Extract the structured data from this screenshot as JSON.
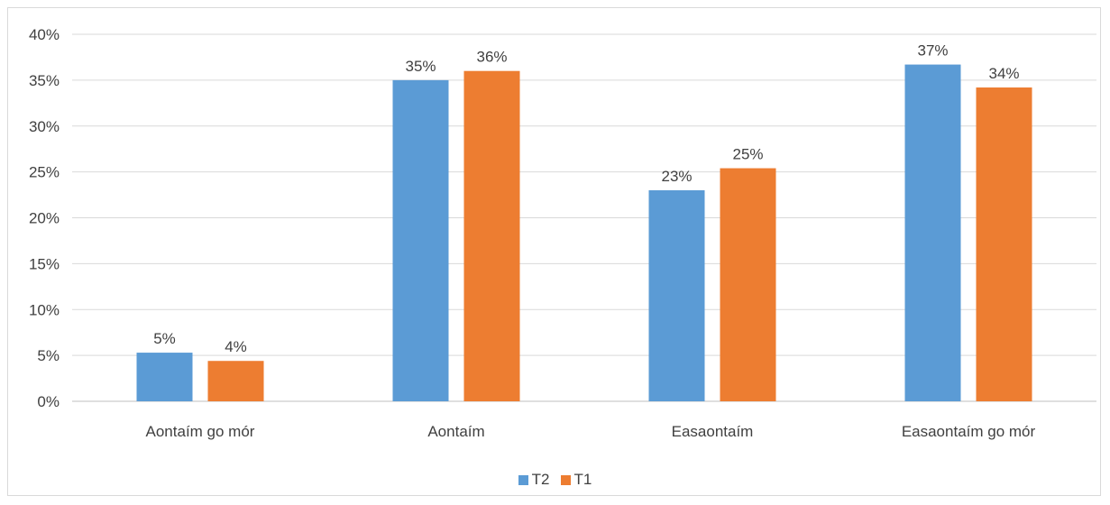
{
  "chart_data": {
    "type": "bar",
    "title": "",
    "xlabel": "",
    "ylabel": "",
    "ylim": [
      0,
      40
    ],
    "yticks": [
      "0%",
      "5%",
      "10%",
      "15%",
      "20%",
      "25%",
      "30%",
      "35%",
      "40%"
    ],
    "categories": [
      "Aontaím go mór",
      "Aontaím",
      "Easaontaím",
      "Easaontaím go mór"
    ],
    "series": [
      {
        "name": "T2",
        "color": "#5B9BD5",
        "values": [
          5.3,
          35.0,
          23.0,
          36.7
        ],
        "labels": [
          "5%",
          "35%",
          "23%",
          "37%"
        ]
      },
      {
        "name": "T1",
        "color": "#ED7D31",
        "values": [
          4.4,
          36.0,
          25.4,
          34.2
        ],
        "labels": [
          "4%",
          "36%",
          "25%",
          "34%"
        ]
      }
    ],
    "grid": true,
    "legend": "bottom"
  }
}
